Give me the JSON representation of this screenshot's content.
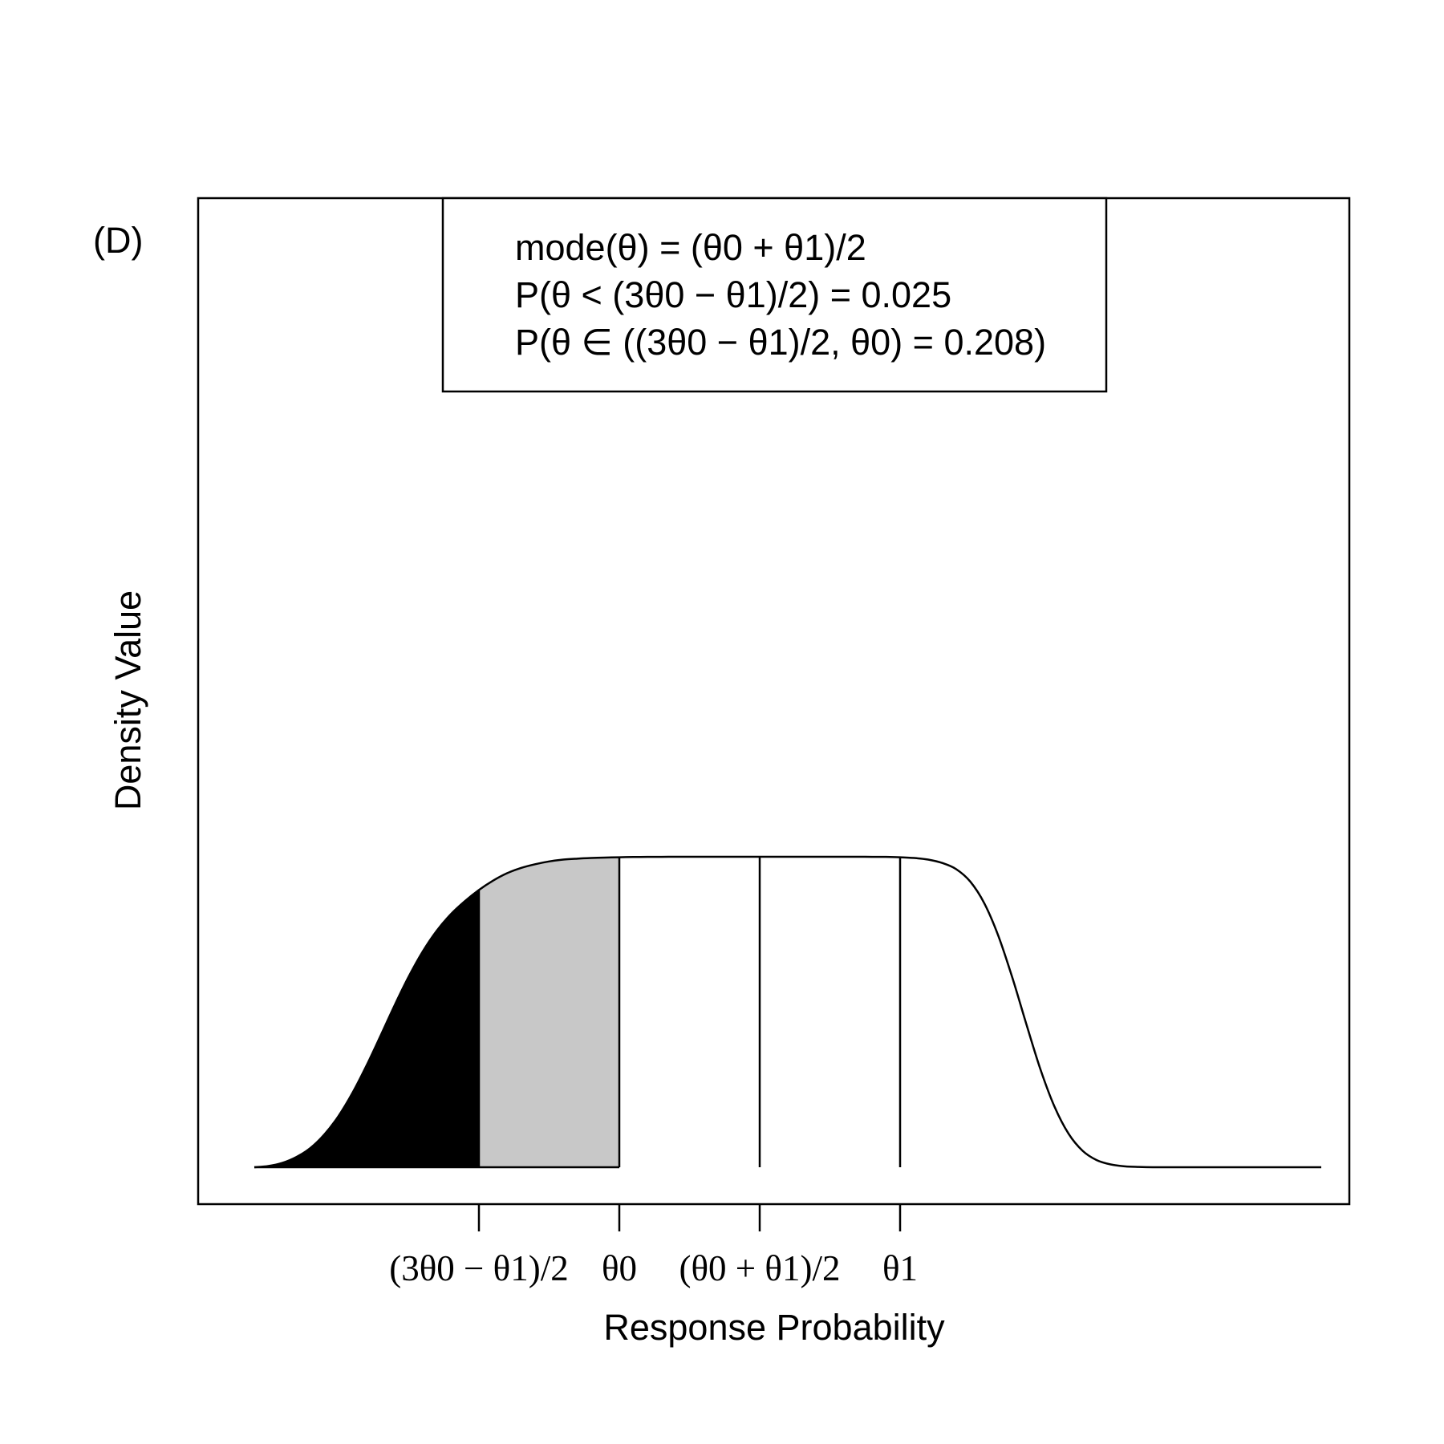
{
  "panel_label": "(D)",
  "colors": {
    "tail_fill": "#000000",
    "band_fill": "#c8c8c8",
    "line": "#000000",
    "background": "#ffffff"
  },
  "chart_data": {
    "type": "area",
    "title": "",
    "xlabel": "Response Probability",
    "ylabel": "Density Value",
    "x_ticks": [
      {
        "id": "lower",
        "label": "(3θ0 − θ1)/2",
        "x": -0.5
      },
      {
        "id": "theta0",
        "label": "θ0",
        "x": 0.0
      },
      {
        "id": "mid",
        "label": "(θ0 + θ1)/2",
        "x": 0.5
      },
      {
        "id": "theta1",
        "label": "θ1",
        "x": 1.0
      }
    ],
    "xlim": [
      -1.5,
      2.6
    ],
    "ylim": [
      0,
      1.12
    ],
    "grid": false,
    "legend_position": "top-center",
    "legend_lines": [
      "mode(θ) = (θ0 + θ1)/2",
      "P(θ < (3θ0 − θ1)/2) = 0.025",
      "P(θ ∈ ((3θ0 − θ1)/2, θ0) = 0.208)"
    ],
    "stats": {
      "mode": "(θ0 + θ1)/2",
      "p_below_lower": 0.025,
      "p_lower_to_theta0": 0.208
    },
    "shaded_regions": [
      {
        "id": "tail",
        "from": -1.5,
        "to": -0.5,
        "color": "#000000",
        "probability": 0.025
      },
      {
        "id": "band",
        "from": -0.5,
        "to": 0.0,
        "color": "#c8c8c8",
        "probability": 0.208
      }
    ],
    "vertical_lines_at": [
      0.0,
      0.5,
      1.0
    ],
    "series": [
      {
        "x": [
          -1.3,
          -1.25,
          -1.2,
          -1.15,
          -1.1,
          -1.05,
          -1.0,
          -0.95,
          -0.9,
          -0.85,
          -0.8,
          -0.75,
          -0.7,
          -0.65,
          -0.6,
          -0.55,
          -0.5,
          -0.45,
          -0.4,
          -0.35,
          -0.3,
          -0.25,
          -0.2,
          -0.15,
          -0.1,
          -0.05,
          0.0,
          0.05,
          0.1,
          0.15,
          0.2,
          0.25,
          0.3,
          0.35,
          0.4,
          0.45,
          0.5,
          0.55,
          0.6,
          0.65,
          0.7,
          0.75,
          0.8,
          0.85,
          0.9,
          0.95,
          1.0,
          1.05,
          1.1,
          1.15,
          1.2,
          1.25,
          1.3,
          1.35,
          1.4,
          1.45,
          1.5,
          1.55,
          1.6,
          1.65,
          1.7,
          1.75,
          1.8,
          1.85,
          1.9,
          1.95,
          2.0,
          2.05,
          2.1,
          2.15,
          2.2,
          2.25,
          2.3,
          2.35,
          2.4,
          2.45,
          2.5
        ],
        "y": [
          0.0,
          0.004,
          0.014,
          0.033,
          0.062,
          0.106,
          0.165,
          0.24,
          0.328,
          0.424,
          0.522,
          0.614,
          0.695,
          0.762,
          0.815,
          0.857,
          0.893,
          0.923,
          0.947,
          0.964,
          0.976,
          0.985,
          0.991,
          0.994,
          0.996,
          0.9975,
          0.9985,
          0.9992,
          0.9996,
          0.9998,
          0.9999,
          1.0,
          1.0,
          1.0,
          1.0,
          1.0,
          1.0,
          1.0,
          1.0,
          1.0,
          1.0,
          1.0,
          1.0,
          0.9999,
          0.9998,
          0.9996,
          0.9985,
          0.996,
          0.991,
          0.98,
          0.96,
          0.92,
          0.85,
          0.745,
          0.61,
          0.46,
          0.315,
          0.195,
          0.108,
          0.053,
          0.023,
          0.009,
          0.003,
          0.001,
          0.0,
          0.0,
          0.0,
          0.0,
          0.0,
          0.0,
          0.0,
          0.0,
          0.0,
          0.0,
          0.0,
          0.0,
          0.0
        ]
      }
    ]
  }
}
